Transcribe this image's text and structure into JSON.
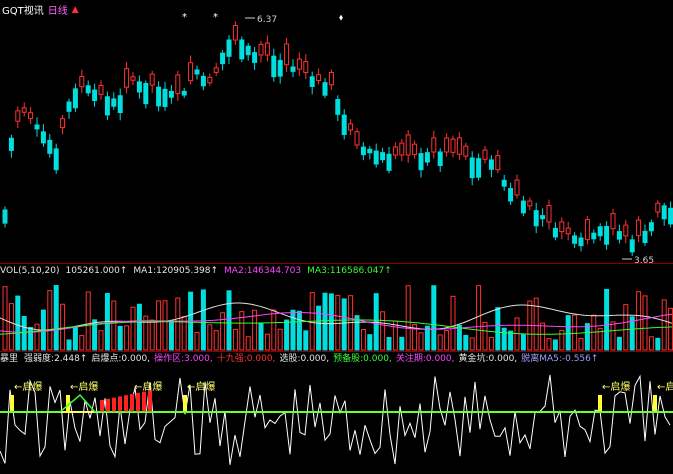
{
  "header": {
    "title": "GQT视讯",
    "period": "日线",
    "marker": "▲"
  },
  "price_panel": {
    "high_label": "6.37",
    "low_label": "3.65",
    "colors": {
      "up": "#ff3232",
      "down": "#00dede",
      "bg": "#000000",
      "axis": "#8a0000"
    }
  },
  "volume_panel": {
    "name": "VOL(5,10,20)",
    "vol": "105261.000↑",
    "ma1_label": "MA1:",
    "ma1": "120905.398↑",
    "ma2_label": "MA2:",
    "ma2": "146344.703",
    "ma3_label": "MA3:",
    "ma3": "116586.047↑"
  },
  "indicator_panel": {
    "name": "暴里",
    "items": [
      {
        "label": "强弱度:",
        "value": "2.448↑",
        "color": "white"
      },
      {
        "label": "启爆点:",
        "value": "0.000,",
        "color": "white"
      },
      {
        "label": "操作区:",
        "value": "3.000,",
        "color": "magenta"
      },
      {
        "label": "十九强:",
        "value": "0.000,",
        "color": "red"
      },
      {
        "label": "选股:",
        "value": "0.000,",
        "color": "white"
      },
      {
        "label": "预备股:",
        "value": "0.000,",
        "color": "green"
      },
      {
        "label": "关注期:",
        "value": "0.000,",
        "color": "magenta"
      },
      {
        "label": "黄金坑:",
        "value": "0.000,",
        "color": "white"
      },
      {
        "label": "脱离MA5:",
        "value": "-0.556↑",
        "color": "blue"
      }
    ],
    "signal_label": "启爆"
  }
}
